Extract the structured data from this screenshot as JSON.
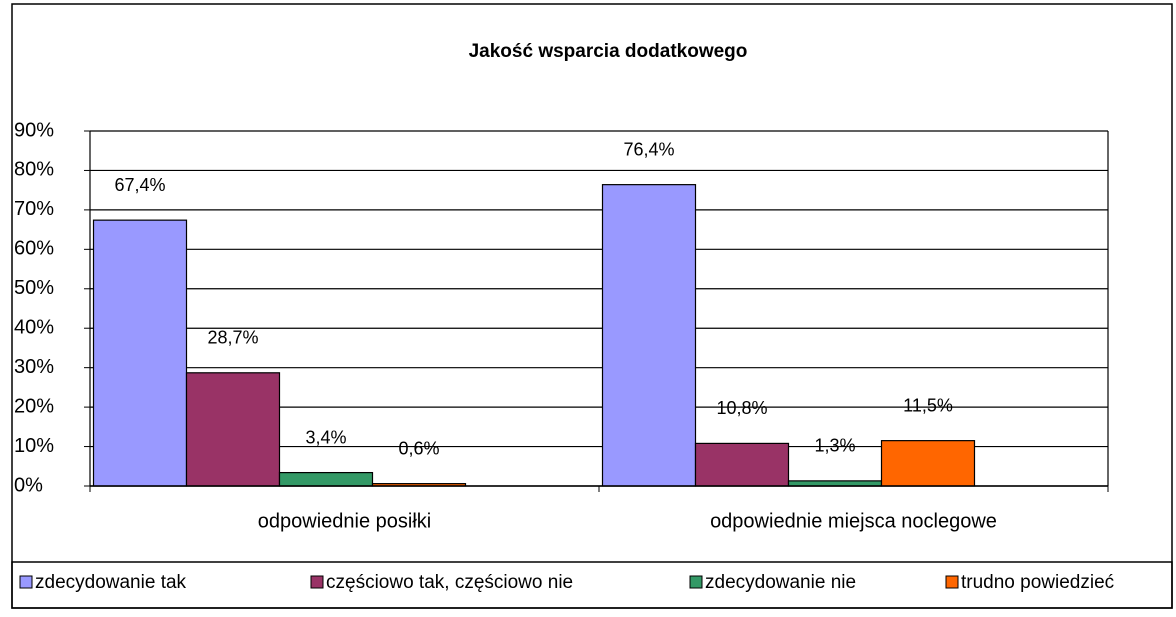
{
  "chart_data": {
    "type": "bar",
    "title": "Jakość wsparcia dodatkowego",
    "categories": [
      "odpowiednie posiłki",
      "odpowiednie miejsca noclegowe"
    ],
    "series": [
      {
        "name": "zdecydowanie tak",
        "color": "#9999ff",
        "values": [
          67.4,
          76.4
        ],
        "value_labels": [
          "67,4%",
          "76,4%"
        ]
      },
      {
        "name": "częściowo tak, częściowo nie",
        "color": "#993366",
        "values": [
          28.7,
          10.8
        ],
        "value_labels": [
          "28,7%",
          "10,8%"
        ]
      },
      {
        "name": "zdecydowanie nie",
        "color": "#339966",
        "values": [
          3.4,
          1.3
        ],
        "value_labels": [
          "3,4%",
          "1,3%"
        ]
      },
      {
        "name": "trudno powiedzieć",
        "color": "#ff6600",
        "values": [
          0.6,
          11.5
        ],
        "value_labels": [
          "0,6%",
          "11,5%"
        ]
      }
    ],
    "ylim": [
      0,
      90
    ],
    "yticks": [
      {
        "value": 0,
        "label": "0%"
      },
      {
        "value": 10,
        "label": "10%"
      },
      {
        "value": 20,
        "label": "20%"
      },
      {
        "value": 30,
        "label": "30%"
      },
      {
        "value": 40,
        "label": "40%"
      },
      {
        "value": 50,
        "label": "50%"
      },
      {
        "value": 60,
        "label": "60%"
      },
      {
        "value": 70,
        "label": "70%"
      },
      {
        "value": 80,
        "label": "80%"
      },
      {
        "value": 90,
        "label": "90%"
      }
    ],
    "grid": true,
    "legend": "bottom"
  }
}
